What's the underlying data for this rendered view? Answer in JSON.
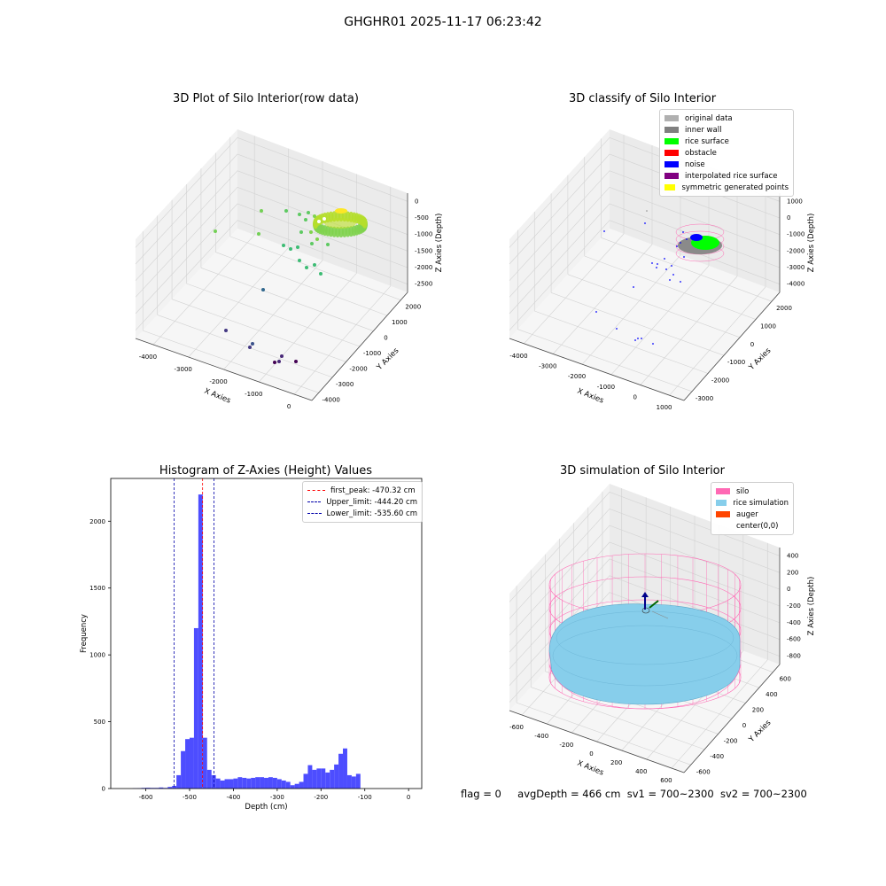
{
  "suptitle": "GHGHR01 2025-11-17 06:23:42",
  "chart_data": [
    {
      "type": "scatter",
      "title": "3D Plot of Silo Interior(row data)",
      "xlabel": "X Axies",
      "ylabel": "Y Axies",
      "zlabel": "Z Axies (Depth)",
      "x_ticks": [
        "-4000",
        "-3000",
        "-2000",
        "-1000",
        "0"
      ],
      "y_ticks": [
        "-4000",
        "-3000",
        "-2000",
        "-1000",
        "0",
        "1000",
        "2000"
      ],
      "z_ticks": [
        "0",
        "-500",
        "-1000",
        "-1500",
        "-2000",
        "-2500"
      ],
      "colormap": "viridis",
      "colors": {
        "far": "#440154",
        "mid": "#21918c",
        "near": "#5ec962",
        "top": "#fde725"
      }
    },
    {
      "type": "scatter",
      "title": "3D classify of Silo Interior",
      "xlabel": "X Axies",
      "ylabel": "Y Axies",
      "zlabel": "Z Axies (Depth)",
      "x_ticks": [
        "-4000",
        "-3000",
        "-2000",
        "-1000",
        "0",
        "1000"
      ],
      "y_ticks": [
        "-3000",
        "-2000",
        "-1000",
        "0",
        "1000",
        "2000"
      ],
      "z_ticks": [
        "1000",
        "0",
        "-1000",
        "-2000",
        "-3000",
        "-4000"
      ],
      "legend_position": "top-right",
      "legend": [
        {
          "name": "original data",
          "color": "#b0b0b0"
        },
        {
          "name": "inner wall",
          "color": "#808080"
        },
        {
          "name": "rice surface",
          "color": "#00ff00"
        },
        {
          "name": "obstacle",
          "color": "#ff0000"
        },
        {
          "name": "noise",
          "color": "#0000ff"
        },
        {
          "name": "interpolated rice surface",
          "color": "#800080"
        },
        {
          "name": "symmetric generated points",
          "color": "#ffff00"
        }
      ],
      "colors": {
        "wireframe": "#ff69b4"
      }
    },
    {
      "type": "bar",
      "title": "Histogram of Z-Axies (Height) Values",
      "xlabel": "Depth (cm)",
      "ylabel": "Frequency",
      "xlim": [
        -680,
        30
      ],
      "ylim": [
        0,
        2320
      ],
      "x_ticks": [
        -600,
        -500,
        -400,
        -300,
        -200,
        -100,
        0
      ],
      "y_ticks": [
        0,
        500,
        1000,
        1500,
        2000
      ],
      "bin_width": 10,
      "bins_start": [
        -630,
        -620,
        -610,
        -600,
        -590,
        -580,
        -570,
        -560,
        -550,
        -540,
        -530,
        -520,
        -510,
        -500,
        -490,
        -480,
        -470,
        -460,
        -450,
        -440,
        -430,
        -420,
        -410,
        -400,
        -390,
        -380,
        -370,
        -360,
        -350,
        -340,
        -330,
        -320,
        -310,
        -300,
        -290,
        -280,
        -270,
        -260,
        -250,
        -240,
        -230,
        -220,
        -210,
        -200,
        -190,
        -180,
        -170,
        -160,
        -150,
        -140,
        -130,
        -120,
        -110,
        -100,
        -90,
        -80,
        -70,
        -60,
        -50,
        -40,
        -30,
        -20,
        -10,
        0
      ],
      "values": [
        2,
        3,
        5,
        6,
        5,
        5,
        8,
        5,
        12,
        20,
        100,
        280,
        370,
        380,
        1200,
        2200,
        380,
        140,
        100,
        75,
        60,
        70,
        70,
        75,
        85,
        80,
        75,
        80,
        85,
        85,
        80,
        85,
        80,
        70,
        60,
        50,
        25,
        35,
        50,
        110,
        175,
        140,
        150,
        150,
        120,
        140,
        180,
        260,
        300,
        100,
        90,
        110,
        0,
        0,
        0,
        0,
        0,
        0,
        0,
        0,
        0,
        0,
        0,
        0
      ],
      "bar_color": "#4d4dff",
      "lines": [
        {
          "name": "first_peak: -470.32 cm",
          "value": -470.32,
          "color": "#ff0000"
        },
        {
          "name": "Upper_limit: -444.20 cm",
          "value": -444.2,
          "color": "#0000aa"
        },
        {
          "name": "Lower_limit: -535.60 cm",
          "value": -535.6,
          "color": "#0000aa"
        }
      ],
      "legend_position": "top-right"
    },
    {
      "type": "scatter",
      "title": "3D simulation of Silo Interior",
      "xlabel": "X Axies",
      "ylabel": "Y Axies",
      "zlabel": "Z Axies (Depth)",
      "x_ticks": [
        "-600",
        "-400",
        "-200",
        "0",
        "200",
        "400",
        "600"
      ],
      "y_ticks": [
        "-600",
        "-400",
        "-200",
        "0",
        "200",
        "400",
        "600"
      ],
      "z_ticks": [
        "400",
        "200",
        "0",
        "-200",
        "-400",
        "-600",
        "-800"
      ],
      "legend_position": "top-right",
      "legend": [
        {
          "name": "silo",
          "color": "#ff69b4"
        },
        {
          "name": "rice simulation",
          "color": "#87ceeb"
        },
        {
          "name": "auger",
          "color": "#ff4500"
        },
        {
          "name": "center(0,0)",
          "color": ""
        }
      ]
    }
  ],
  "footer": {
    "flag": "flag = 0",
    "avg_depth": "avgDepth = 466 cm",
    "sv1": "sv1 = 700~2300",
    "sv2": "sv2 = 700~2300"
  }
}
